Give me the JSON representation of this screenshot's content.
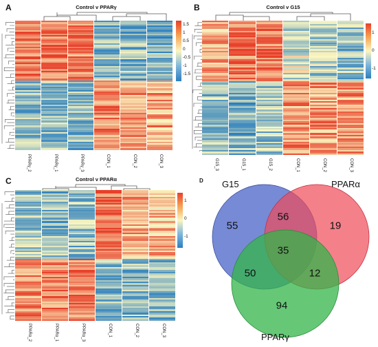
{
  "panels": {
    "A": {
      "label": "A",
      "title": "Control v PPARγ",
      "columns": [
        "PPARγ_2",
        "PPARγ_1",
        "PPARγ_3",
        "CON_1",
        "CON_2",
        "CON_3"
      ],
      "colorbar_ticks": [
        "1.5",
        "1",
        "0.5",
        "0",
        "-0.5",
        "-1",
        "-1.5"
      ]
    },
    "B": {
      "label": "B",
      "title": "Control v G15",
      "columns": [
        "G15_3",
        "G15_1",
        "G15_2",
        "CON_1",
        "CON_2",
        "CON_3"
      ],
      "colorbar_ticks": [
        "1",
        "0",
        "-1"
      ]
    },
    "C": {
      "label": "C",
      "title": "Control v PPARα",
      "columns": [
        "PPARα_2",
        "PPARα_1",
        "PPARα_3",
        "CON_1",
        "CON_2",
        "CON_3"
      ],
      "colorbar_ticks": [
        "1",
        "0",
        "-1"
      ]
    },
    "D": {
      "label": "D",
      "sets": [
        {
          "name": "G15",
          "color": "#4a63c8"
        },
        {
          "name": "PPARα",
          "color": "#ef4a58"
        },
        {
          "name": "PPARγ",
          "color": "#33b54a"
        }
      ],
      "regions": {
        "g15_only": "55",
        "g15_ppara": "56",
        "ppara_only": "19",
        "all_three": "35",
        "g15_pparg": "50",
        "ppara_pparg": "12",
        "pparg_only": "94"
      }
    }
  },
  "colors": {
    "high": "#e8402a",
    "mid": "#fbf6c0",
    "low": "#2b7fbf"
  }
}
